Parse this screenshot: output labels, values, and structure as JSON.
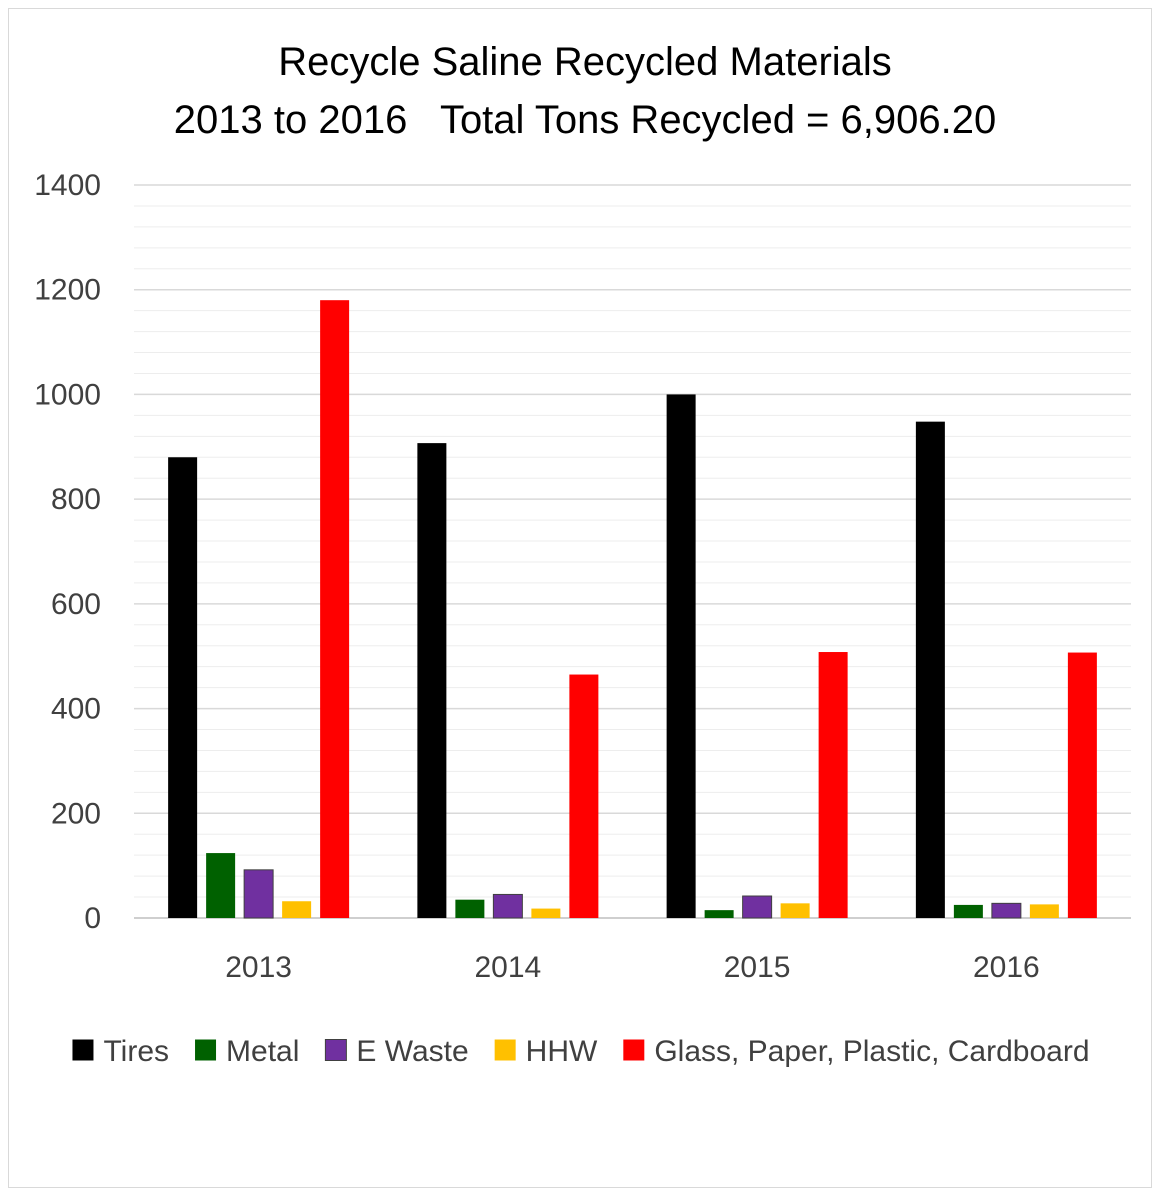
{
  "chart_data": {
    "type": "bar",
    "title": "Recycle Saline Recycled Materials",
    "subtitle": "2013 to 2016   Total Tons Recycled = 6,906.20",
    "categories": [
      "2013",
      "2014",
      "2015",
      "2016"
    ],
    "series": [
      {
        "name": "Tires",
        "color": "#000000",
        "values": [
          880,
          907,
          1000,
          948
        ]
      },
      {
        "name": "Metal",
        "color": "#006100",
        "values": [
          124,
          35,
          15,
          25
        ]
      },
      {
        "name": "E Waste",
        "color": "#7030A0",
        "values": [
          92,
          45,
          42,
          28
        ]
      },
      {
        "name": "HHW",
        "color": "#FFC000",
        "values": [
          32,
          18,
          28,
          26
        ]
      },
      {
        "name": "Glass, Paper, Plastic, Cardboard",
        "color": "#FF0000",
        "values": [
          1180,
          465,
          508,
          507
        ]
      }
    ],
    "ylim": [
      0,
      1400
    ],
    "yticks": [
      0,
      200,
      400,
      600,
      800,
      1000,
      1200,
      1400
    ],
    "xlabel": "",
    "ylabel": "",
    "grid": true,
    "minor_grid": true,
    "legend": "bottom"
  }
}
